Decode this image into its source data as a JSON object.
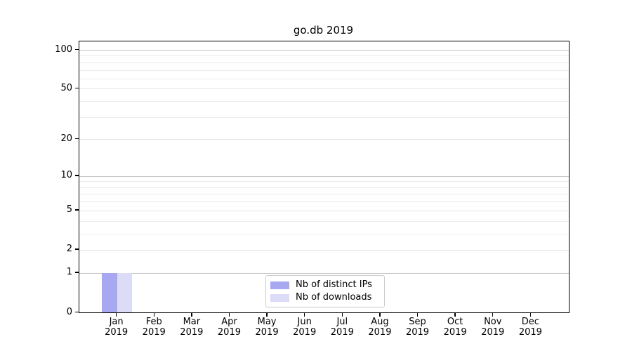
{
  "chart_data": {
    "type": "bar",
    "title": "go.db 2019",
    "categories": [
      "Jan",
      "Feb",
      "Mar",
      "Apr",
      "May",
      "Jun",
      "Jul",
      "Aug",
      "Sep",
      "Oct",
      "Nov",
      "Dec"
    ],
    "year": "2019",
    "series": [
      {
        "name": "Nb of distinct IPs",
        "color": "#a8a8f2",
        "values": [
          1,
          0,
          0,
          0,
          0,
          0,
          0,
          0,
          0,
          0,
          0,
          0
        ]
      },
      {
        "name": "Nb of downloads",
        "color": "#dcdcf8",
        "values": [
          1,
          0,
          0,
          0,
          0,
          0,
          0,
          0,
          0,
          0,
          0,
          0
        ]
      }
    ],
    "y_scale": "log10(value+1)",
    "y_ticks": [
      0,
      1,
      2,
      5,
      10,
      20,
      50,
      100
    ],
    "ylim": [
      0,
      117
    ],
    "grid": true,
    "legend_position": "inside-bottom-center",
    "colors": {
      "grid_dark_major": "#c6c6c6",
      "grid_light_major": "#e2e2e2",
      "grid_minor": "#ebebeb",
      "axis": "#000000",
      "legend_border": "#cccccc",
      "background": "#ffffff"
    }
  }
}
